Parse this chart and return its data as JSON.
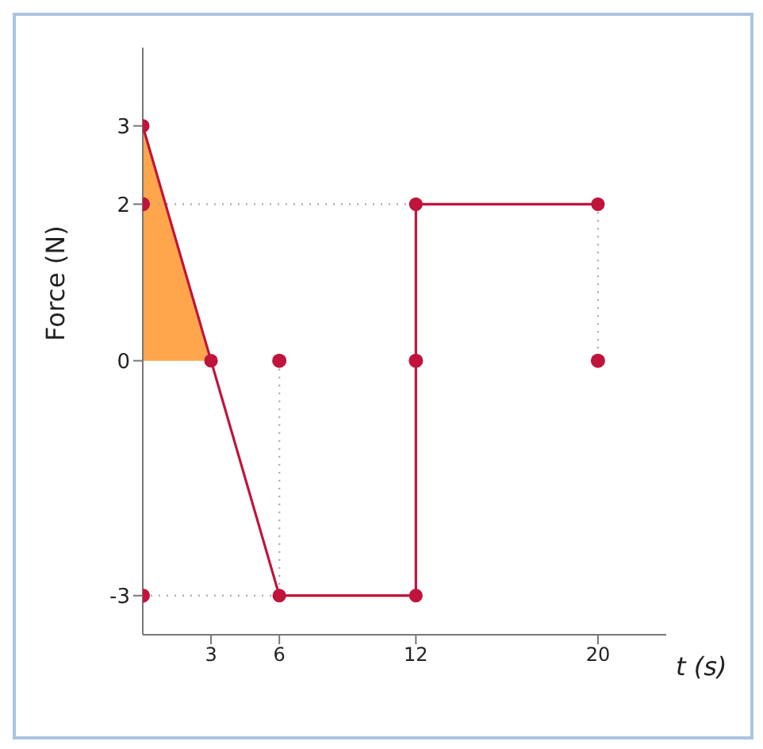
{
  "chart_data": {
    "type": "line",
    "xlabel": "t (s)",
    "ylabel": "Force (N)",
    "xlim": [
      0,
      23
    ],
    "ylim": [
      -3.5,
      4
    ],
    "xticks": [
      3,
      6,
      12,
      20
    ],
    "yticks": [
      -3,
      0,
      2,
      3
    ],
    "grid": false,
    "legend": false,
    "series": [
      {
        "type": "area",
        "color": "#ffa64d",
        "x": [
          0,
          3
        ],
        "values": [
          3,
          0
        ]
      },
      {
        "color": "#aaaaaa",
        "line_style": "dotted",
        "marker": "none",
        "x": [
          0,
          12
        ],
        "values": [
          2,
          2
        ]
      },
      {
        "color": "#aaaaaa",
        "line_style": "dotted",
        "marker": "none",
        "x": [
          20,
          20
        ],
        "values": [
          2,
          0
        ]
      },
      {
        "color": "#aaaaaa",
        "line_style": "dotted",
        "marker": "none",
        "x": [
          6,
          6
        ],
        "values": [
          0,
          -3
        ]
      },
      {
        "color": "#aaaaaa",
        "line_style": "dotted",
        "marker": "none",
        "x": [
          0,
          6
        ],
        "values": [
          -3,
          -3
        ]
      },
      {
        "color": "#c0143c",
        "line_style": "solid",
        "marker": "circle",
        "x": [
          0,
          3,
          6,
          12,
          12,
          20
        ],
        "values": [
          3,
          0,
          -3,
          -3,
          2,
          2
        ]
      },
      {
        "type": "scatter",
        "color": "#c0143c",
        "marker": "circle",
        "x": [
          0,
          0,
          6,
          12,
          20
        ],
        "values": [
          2,
          -3,
          0,
          0,
          0
        ]
      }
    ]
  }
}
